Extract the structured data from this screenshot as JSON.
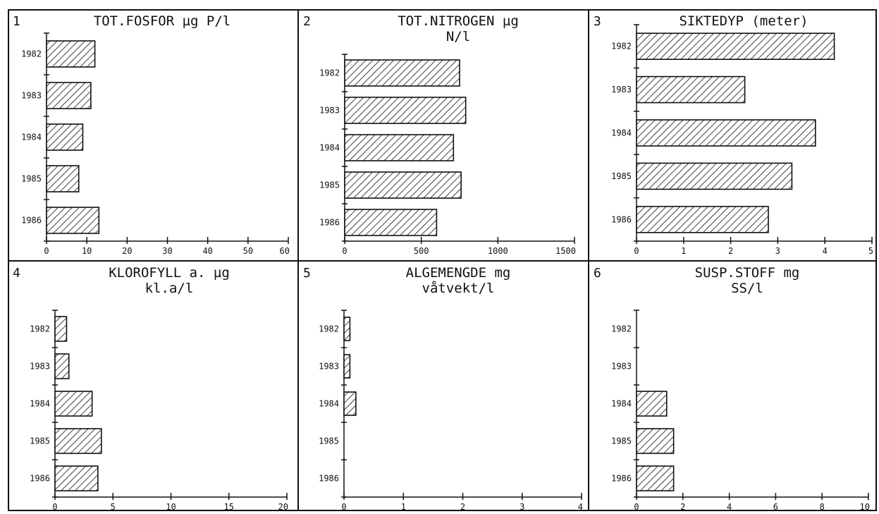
{
  "chart_data": [
    {
      "type": "bar",
      "orientation": "horizontal",
      "panel_number": "1",
      "title_lines": [
        "TOT.FOSFOR  µg P/l"
      ],
      "categories": [
        "1982",
        "1983",
        "1984",
        "1985",
        "1986"
      ],
      "values": [
        12,
        11,
        9,
        8,
        13
      ],
      "xlim": [
        0,
        60
      ],
      "xticks": [
        "0",
        "10",
        "20",
        "30",
        "40",
        "50",
        "60"
      ],
      "grid": false
    },
    {
      "type": "bar",
      "orientation": "horizontal",
      "panel_number": "2",
      "title_lines": [
        "TOT.NITROGEN  µg",
        "N/l"
      ],
      "categories": [
        "1982",
        "1983",
        "1984",
        "1985",
        "1986"
      ],
      "values": [
        750,
        790,
        710,
        760,
        600
      ],
      "xlim": [
        0,
        1500
      ],
      "xticks": [
        "0",
        "500",
        "1000",
        "1500"
      ],
      "grid": false
    },
    {
      "type": "bar",
      "orientation": "horizontal",
      "panel_number": "3",
      "title_lines": [
        "SIKTEDYP  (meter)"
      ],
      "categories": [
        "1982",
        "1983",
        "1984",
        "1985",
        "1986"
      ],
      "values": [
        4.2,
        2.3,
        3.8,
        3.3,
        2.8
      ],
      "xlim": [
        0,
        5
      ],
      "xticks": [
        "0",
        "1",
        "2",
        "3",
        "4",
        "5"
      ],
      "grid": false
    },
    {
      "type": "bar",
      "orientation": "horizontal",
      "panel_number": "4",
      "title_lines": [
        "KLOROFYLL a.  µg",
        "kl.a/l"
      ],
      "categories": [
        "1982",
        "1983",
        "1984",
        "1985",
        "1986"
      ],
      "values": [
        1.0,
        1.2,
        3.2,
        4.0,
        3.7
      ],
      "xlim": [
        0,
        20
      ],
      "xticks": [
        "0",
        "5",
        "10",
        "15",
        "20"
      ],
      "grid": false
    },
    {
      "type": "bar",
      "orientation": "horizontal",
      "panel_number": "5",
      "title_lines": [
        "ALGEMENGDE  mg",
        "våtvekt/l"
      ],
      "categories": [
        "1982",
        "1983",
        "1984",
        "1985",
        "1986"
      ],
      "values": [
        0.1,
        0.1,
        0.2,
        0,
        0
      ],
      "xlim": [
        0,
        4
      ],
      "xticks": [
        "0",
        "1",
        "2",
        "3",
        "4"
      ],
      "grid": false
    },
    {
      "type": "bar",
      "orientation": "horizontal",
      "panel_number": "6",
      "title_lines": [
        "SUSP.STOFF  mg",
        "SS/l"
      ],
      "categories": [
        "1982",
        "1983",
        "1984",
        "1985",
        "1986"
      ],
      "values": [
        0,
        0,
        1.3,
        1.6,
        1.6
      ],
      "xlim": [
        0,
        10
      ],
      "xticks": [
        "0",
        "2",
        "4",
        "6",
        "8",
        "10"
      ],
      "grid": false
    }
  ]
}
